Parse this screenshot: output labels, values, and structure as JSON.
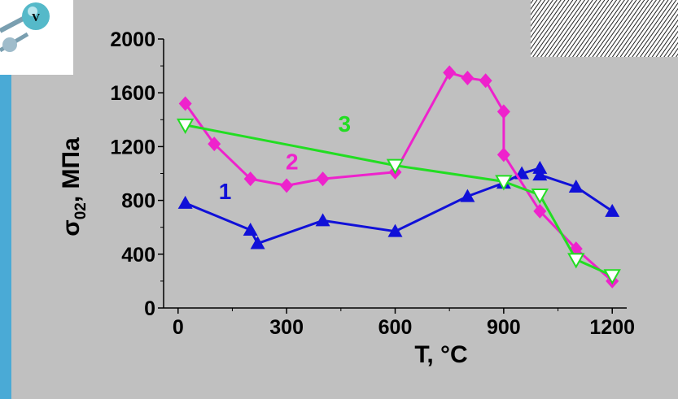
{
  "colors": {
    "background": "#c0c0c0",
    "left_band": "#4aaad6",
    "axis": "#000000"
  },
  "icons": {
    "top_left": "vanadium-atom-model-icon",
    "top_right": "crystal-lattice-texture-image",
    "top_left_text": "V"
  },
  "chart_data": {
    "type": "line",
    "xlabel": "T, °C",
    "ylabel_main": "σ",
    "ylabel_sub": "02",
    "ylabel_suffix": ", МПа",
    "xlim": [
      -40,
      1240
    ],
    "ylim": [
      0,
      2000
    ],
    "xticks": [
      0,
      300,
      600,
      900,
      1200
    ],
    "yticks": [
      0,
      400,
      800,
      1200,
      1600,
      2000
    ],
    "grid": false,
    "series": [
      {
        "name": "1",
        "color": "#1010d8",
        "marker": "triangle",
        "label_at": [
          130,
          810
        ],
        "x": [
          20,
          200,
          220,
          400,
          600,
          800,
          900,
          950,
          1000,
          1000,
          1100,
          1200
        ],
        "y": [
          780,
          580,
          480,
          650,
          570,
          830,
          930,
          1000,
          1040,
          990,
          900,
          720
        ]
      },
      {
        "name": "2",
        "color": "#ee22cc",
        "marker": "diamond",
        "label_at": [
          315,
          1030
        ],
        "x": [
          20,
          100,
          200,
          300,
          400,
          600,
          750,
          800,
          850,
          900,
          900,
          1000,
          1100,
          1200
        ],
        "y": [
          1520,
          1220,
          960,
          910,
          960,
          1010,
          1750,
          1710,
          1690,
          1460,
          1140,
          720,
          440,
          200
        ]
      },
      {
        "name": "3",
        "color": "#22dd22",
        "marker": "triangle-down-open",
        "label_at": [
          460,
          1310
        ],
        "x": [
          20,
          600,
          900,
          1000,
          1100,
          1200
        ],
        "y": [
          1360,
          1060,
          940,
          840,
          360,
          240
        ]
      }
    ]
  }
}
